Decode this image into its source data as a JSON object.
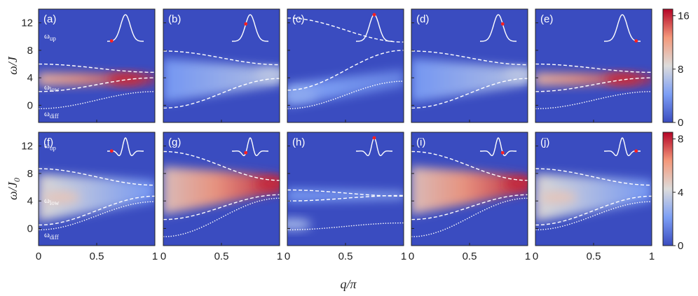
{
  "chart_data": {
    "type": "heatmap",
    "xlabel": "q/π",
    "rows": [
      {
        "ylabel": "ω/J",
        "ylabel_main": "ω/J",
        "ylabel_sub": "",
        "yticks": [
          0,
          4,
          8,
          12
        ],
        "ylim": [
          -2.5,
          14
        ],
        "colorbar": {
          "ticks": [
            0,
            8,
            16
          ],
          "range": [
            0,
            17
          ]
        },
        "band_labels": [
          {
            "main": "ω",
            "sub": "up",
            "y": 9.7
          },
          {
            "main": "ω",
            "sub": "low",
            "y": 2.3
          },
          {
            "main": "ω",
            "sub": "diff",
            "y": -1.6
          }
        ]
      },
      {
        "ylabel": "ω/J0",
        "ylabel_main": "ω/J",
        "ylabel_sub": "0",
        "yticks": [
          0,
          4,
          8,
          12
        ],
        "ylim": [
          -2.5,
          14
        ],
        "colorbar": {
          "ticks": [
            0,
            4,
            8
          ],
          "range": [
            0,
            8.5
          ]
        },
        "band_labels": [
          {
            "main": "ω",
            "sub": "up",
            "y": 11.7
          },
          {
            "main": "ω",
            "sub": "low",
            "y": 3.7
          },
          {
            "main": "ω",
            "sub": "diff",
            "y": -1.3
          }
        ]
      }
    ],
    "xticks": [
      {
        "v": 0,
        "label": "0"
      },
      {
        "v": 0.5,
        "label": "0.5"
      },
      {
        "v": 1,
        "label": "1"
      }
    ],
    "xlim": [
      0,
      1
    ],
    "panels": [
      {
        "label": "(a)",
        "row": 0,
        "inset": {
          "shape": "gaussian",
          "dot": 0.12
        },
        "up_curve": [
          6.0,
          4.8
        ],
        "low_curve": [
          2.0,
          4.0
        ],
        "diff_curve": [
          -0.5,
          2.0
        ],
        "hotspot": {
          "x": 0.75,
          "y": 3.8,
          "value": 16
        },
        "band": {
          "center": [
            3.8,
            3.8
          ],
          "width": [
            1.0,
            0.6
          ],
          "value": [
            11,
            16
          ]
        }
      },
      {
        "label": "(b)",
        "row": 0,
        "inset": {
          "shape": "gaussian",
          "dot": 0.38
        },
        "up_curve": [
          7.9,
          5.9
        ],
        "low_curve": [
          -0.4,
          3.9
        ],
        "diff_curve": null,
        "hotspot": {
          "x": 0.95,
          "y": 4.5,
          "value": 7
        },
        "band": {
          "center": [
            3.6,
            4.2
          ],
          "width": [
            3.2,
            1.2
          ],
          "value": [
            4,
            7
          ]
        }
      },
      {
        "label": "(c)",
        "row": 0,
        "inset": {
          "shape": "gaussian",
          "dot": 0.5
        },
        "up_curve": [
          12.7,
          9.2
        ],
        "low_curve": [
          2.2,
          8.0
        ],
        "diff_curve": [
          -0.5,
          3.5
        ],
        "hotspot": {
          "x": 0.1,
          "y": 1.5,
          "value": 5
        },
        "band": {
          "center": [
            1.5,
            4.0
          ],
          "width": [
            1.6,
            1.2
          ],
          "value": [
            5,
            3
          ]
        }
      },
      {
        "label": "(d)",
        "row": 0,
        "inset": {
          "shape": "gaussian",
          "dot": 0.62
        },
        "up_curve": [
          7.9,
          5.9
        ],
        "low_curve": [
          -0.4,
          3.9
        ],
        "diff_curve": null,
        "hotspot": {
          "x": 0.95,
          "y": 4.5,
          "value": 7
        },
        "band": {
          "center": [
            3.6,
            4.2
          ],
          "width": [
            3.2,
            1.2
          ],
          "value": [
            4,
            7
          ]
        }
      },
      {
        "label": "(e)",
        "row": 0,
        "inset": {
          "shape": "gaussian",
          "dot": 0.88
        },
        "up_curve": [
          6.0,
          4.8
        ],
        "low_curve": [
          2.0,
          4.0
        ],
        "diff_curve": [
          -0.5,
          2.0
        ],
        "hotspot": {
          "x": 0.75,
          "y": 3.8,
          "value": 16
        },
        "band": {
          "center": [
            3.8,
            3.8
          ],
          "width": [
            1.0,
            0.6
          ],
          "value": [
            11,
            16
          ]
        }
      },
      {
        "label": "(f)",
        "row": 1,
        "inset": {
          "shape": "wavelet",
          "dot": 0.12
        },
        "up_curve": [
          8.7,
          6.3
        ],
        "low_curve": [
          0.5,
          4.7
        ],
        "diff_curve": [
          -0.2,
          3.9
        ],
        "hotspot": {
          "x": 0.2,
          "y": 4.5,
          "value": 5
        },
        "band": {
          "center": [
            4.5,
            5.5
          ],
          "width": [
            3.5,
            1.5
          ],
          "value": [
            4.5,
            2
          ]
        }
      },
      {
        "label": "(g)",
        "row": 1,
        "inset": {
          "shape": "wavelet",
          "dot": 0.38
        },
        "up_curve": [
          11.2,
          7.0
        ],
        "low_curve": [
          1.3,
          4.9
        ],
        "diff_curve": [
          -1.2,
          4.4
        ],
        "hotspot": {
          "x": 0.95,
          "y": 6.5,
          "value": 8
        },
        "band": {
          "center": [
            5.5,
            6.5
          ],
          "width": [
            3.5,
            1.2
          ],
          "value": [
            5,
            8
          ]
        }
      },
      {
        "label": "(h)",
        "row": 1,
        "inset": {
          "shape": "wavelet",
          "dot": 0.5
        },
        "up_curve": [
          5.6,
          4.7
        ],
        "low_curve": [
          4.0,
          4.8
        ],
        "diff_curve": [
          -0.2,
          0.8
        ],
        "hotspot": {
          "x": 0.05,
          "y": 0.6,
          "value": 3
        },
        "band": {
          "center": [
            4.8,
            4.8
          ],
          "width": [
            1.0,
            0.5
          ],
          "value": [
            2,
            2.5
          ]
        }
      },
      {
        "label": "(i)",
        "row": 1,
        "inset": {
          "shape": "wavelet",
          "dot": 0.62
        },
        "up_curve": [
          11.2,
          7.0
        ],
        "low_curve": [
          1.3,
          4.9
        ],
        "diff_curve": [
          -1.2,
          4.4
        ],
        "hotspot": {
          "x": 0.95,
          "y": 6.5,
          "value": 8
        },
        "band": {
          "center": [
            5.5,
            6.5
          ],
          "width": [
            3.5,
            1.2
          ],
          "value": [
            5,
            8
          ]
        }
      },
      {
        "label": "(j)",
        "row": 1,
        "inset": {
          "shape": "wavelet",
          "dot": 0.88
        },
        "up_curve": [
          8.7,
          6.3
        ],
        "low_curve": [
          0.5,
          4.7
        ],
        "diff_curve": [
          -0.2,
          3.9
        ],
        "hotspot": {
          "x": 0.2,
          "y": 4.5,
          "value": 5
        },
        "band": {
          "center": [
            4.5,
            5.5
          ],
          "width": [
            3.5,
            1.5
          ],
          "value": [
            4.5,
            2
          ]
        }
      }
    ]
  }
}
